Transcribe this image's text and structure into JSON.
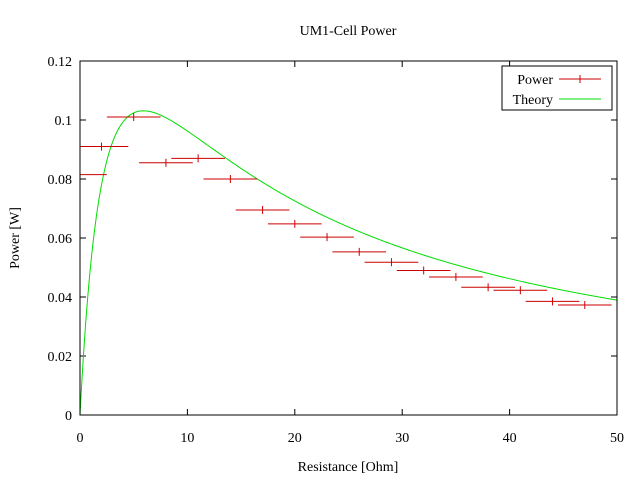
{
  "chart_data": {
    "type": "scatter",
    "title": "UM1-Cell Power",
    "xlabel": "Resistance [Ohm]",
    "ylabel": "Power [W]",
    "xlim": [
      0,
      50
    ],
    "ylim": [
      0,
      0.12
    ],
    "xticks": [
      0,
      10,
      20,
      30,
      40,
      50
    ],
    "yticks": [
      0,
      0.02,
      0.04,
      0.06,
      0.08,
      0.1,
      0.12
    ],
    "xtick_labels": [
      "0",
      "10",
      "20",
      "30",
      "40",
      "50"
    ],
    "ytick_labels": [
      "0",
      "0.02",
      "0.04",
      "0.06",
      "0.08",
      "0.1",
      "0.12"
    ],
    "legend_position": "top-right",
    "series": [
      {
        "name": "Power",
        "kind": "points-with-xerror",
        "color": "#cc0000",
        "points": [
          {
            "x": 0.0,
            "y": 0.0815,
            "xerr": 2.5
          },
          {
            "x": 2.0,
            "y": 0.091,
            "xerr": 2.5
          },
          {
            "x": 5.0,
            "y": 0.101,
            "xerr": 2.5
          },
          {
            "x": 8.0,
            "y": 0.0855,
            "xerr": 2.5
          },
          {
            "x": 11.0,
            "y": 0.087,
            "xerr": 2.5
          },
          {
            "x": 14.0,
            "y": 0.08,
            "xerr": 2.5
          },
          {
            "x": 17.0,
            "y": 0.0695,
            "xerr": 2.5
          },
          {
            "x": 20.0,
            "y": 0.0648,
            "xerr": 2.5
          },
          {
            "x": 23.0,
            "y": 0.0603,
            "xerr": 2.5
          },
          {
            "x": 26.0,
            "y": 0.0553,
            "xerr": 2.5
          },
          {
            "x": 29.0,
            "y": 0.0518,
            "xerr": 2.5
          },
          {
            "x": 32.0,
            "y": 0.049,
            "xerr": 2.5
          },
          {
            "x": 35.0,
            "y": 0.0468,
            "xerr": 2.5
          },
          {
            "x": 38.0,
            "y": 0.0433,
            "xerr": 2.5
          },
          {
            "x": 41.0,
            "y": 0.0423,
            "xerr": 2.5
          },
          {
            "x": 44.0,
            "y": 0.0385,
            "xerr": 2.5
          },
          {
            "x": 47.0,
            "y": 0.0373,
            "xerr": 2.5
          }
        ]
      },
      {
        "name": "Theory",
        "kind": "line",
        "color": "#00dd00",
        "model": "P = V^2 * R / (R + r)^2",
        "params": {
          "V": 1.56,
          "r": 5.9
        }
      }
    ]
  }
}
